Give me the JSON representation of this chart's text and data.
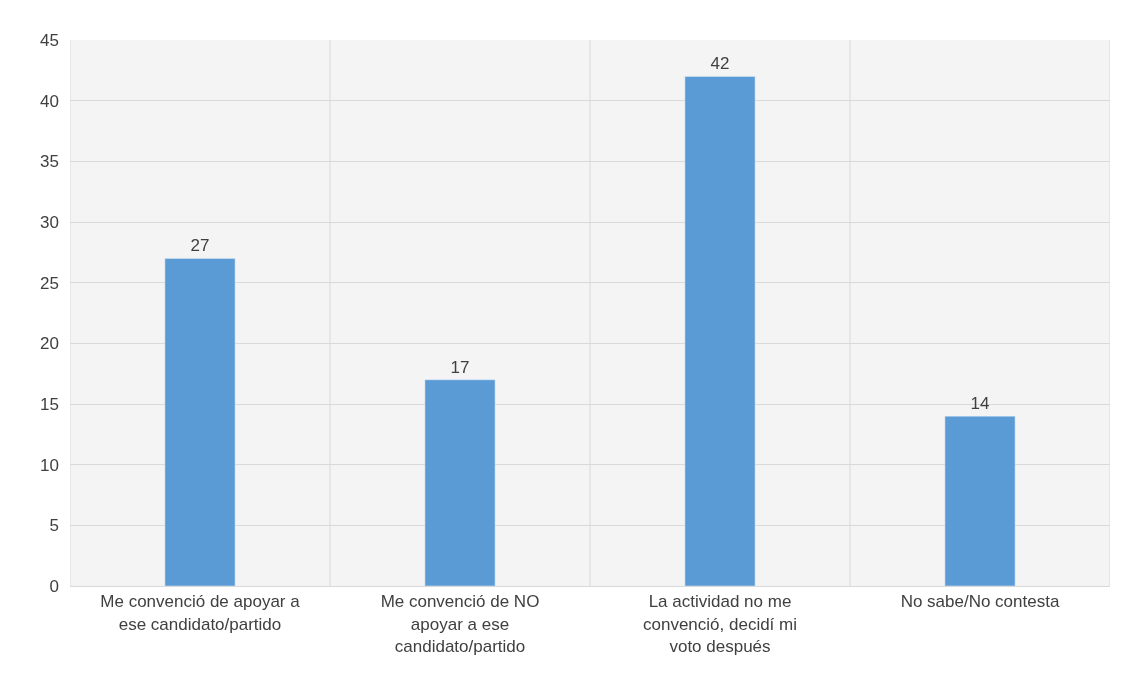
{
  "chart_data": {
    "type": "bar",
    "categories": [
      "Me convenció de apoyar a ese candidato/partido",
      "Me convenció de NO apoyar a ese candidato/partido",
      "La actividad no me convenció, decidí mi voto después",
      "No sabe/No contesta"
    ],
    "values": [
      27,
      17,
      42,
      14
    ],
    "color": "#5b9bd5",
    "ylim": [
      0,
      45
    ],
    "yticks": [
      0,
      5,
      10,
      15,
      20,
      25,
      30,
      35,
      40,
      45
    ],
    "grid": true,
    "data_labels": true
  }
}
